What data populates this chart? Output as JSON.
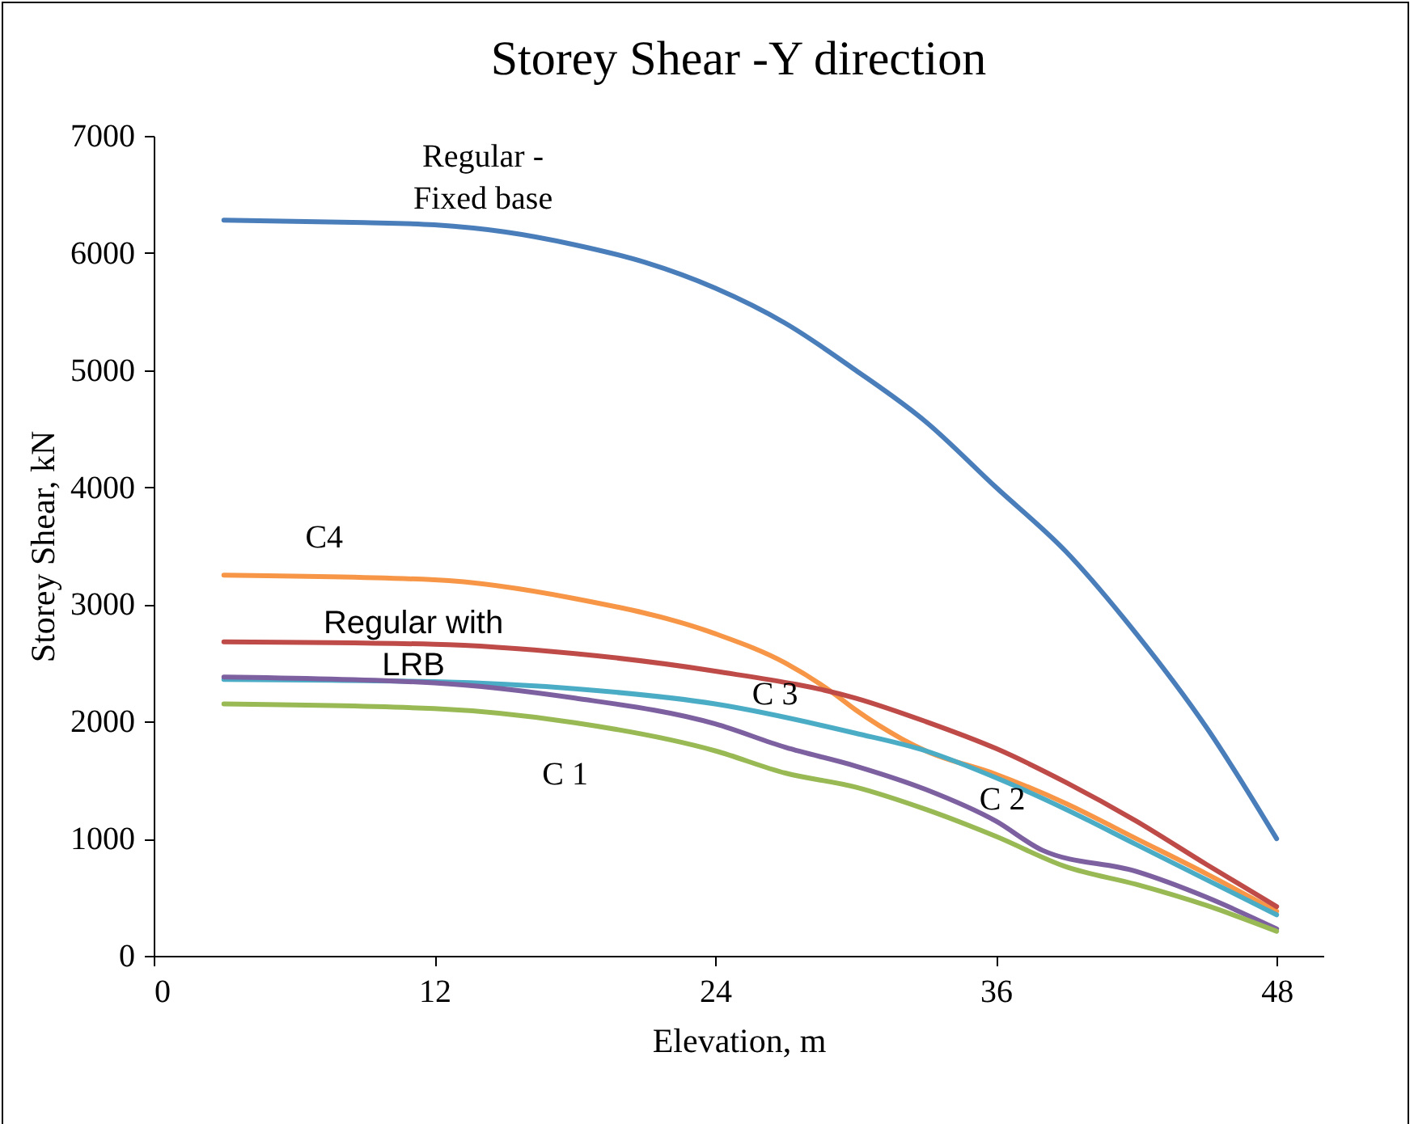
{
  "chart_data": {
    "type": "line",
    "title": "Storey Shear -Y direction",
    "xlabel": "Elevation, m",
    "ylabel": "Storey Shear, kN",
    "xlim": [
      0,
      50
    ],
    "xticks": [
      0,
      12,
      24,
      36,
      48
    ],
    "ylim": [
      0,
      7000
    ],
    "yticks": [
      0,
      1000,
      2000,
      3000,
      4000,
      5000,
      6000,
      7000
    ],
    "grid": false,
    "legend": false,
    "series": [
      {
        "name": "Regular - Fixed base",
        "color": "#4a7ebb",
        "x": [
          3,
          6,
          9,
          12,
          15,
          18,
          21,
          24,
          27,
          30,
          33,
          36,
          39,
          42,
          45,
          48
        ],
        "values": [
          6280,
          6270,
          6260,
          6240,
          6180,
          6070,
          5920,
          5700,
          5400,
          5000,
          4560,
          4000,
          3450,
          2750,
          1950,
          1000
        ]
      },
      {
        "name": "C4",
        "color": "#f79646",
        "x": [
          3,
          12,
          18,
          24,
          27,
          29,
          30,
          32,
          33,
          36,
          39,
          42,
          45,
          48
        ],
        "values": [
          3250,
          3210,
          3050,
          2750,
          2500,
          2250,
          2100,
          1850,
          1750,
          1550,
          1300,
          1000,
          700,
          380
        ]
      },
      {
        "name": "Regular with LRB",
        "color": "#be4b48",
        "x": [
          3,
          12,
          18,
          24,
          30,
          33,
          36,
          39,
          42,
          45,
          48
        ],
        "values": [
          2680,
          2660,
          2580,
          2430,
          2200,
          2000,
          1770,
          1480,
          1150,
          780,
          420
        ]
      },
      {
        "name": "C 3",
        "color": "#4bacc6",
        "x": [
          3,
          12,
          18,
          24,
          30,
          33,
          36,
          39,
          42,
          45,
          48
        ],
        "values": [
          2360,
          2340,
          2280,
          2150,
          1900,
          1750,
          1520,
          1250,
          950,
          650,
          350
        ]
      },
      {
        "name": "C 2",
        "color": "#7d60a0",
        "x": [
          3,
          12,
          18,
          24,
          27,
          30,
          33,
          36,
          38,
          42,
          45,
          48
        ],
        "values": [
          2380,
          2330,
          2200,
          1980,
          1780,
          1620,
          1420,
          1150,
          900,
          720,
          500,
          230
        ]
      },
      {
        "name": "C 1",
        "color": "#98b954",
        "x": [
          3,
          12,
          18,
          24,
          27,
          30,
          33,
          36,
          39,
          42,
          45,
          48
        ],
        "values": [
          2150,
          2110,
          1990,
          1750,
          1560,
          1440,
          1250,
          1020,
          760,
          610,
          430,
          210
        ]
      }
    ]
  }
}
